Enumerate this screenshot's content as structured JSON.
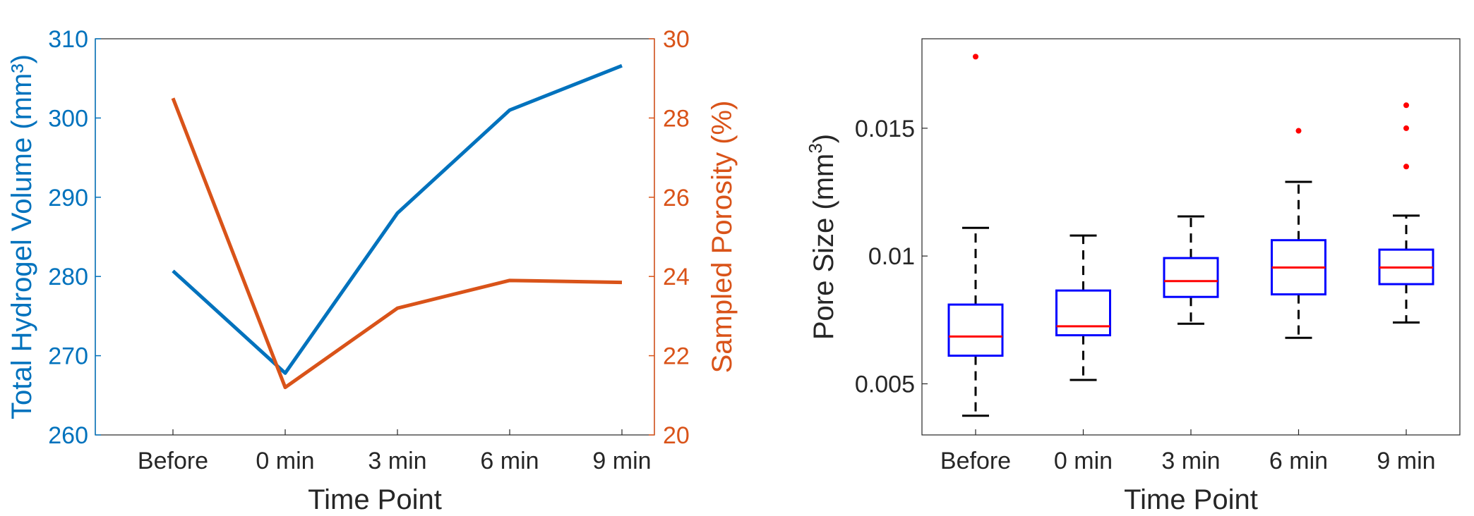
{
  "chart_data": [
    {
      "type": "line",
      "xlabel": "Time Point",
      "categories": [
        "Before",
        "0 min",
        "3 min",
        "6 min",
        "9 min"
      ],
      "series": [
        {
          "name": "Total Hydrogel Volume (mm³)",
          "axis": "left",
          "color": "#0072BD",
          "values": [
            280.7,
            267.8,
            288.0,
            301.0,
            306.6
          ]
        },
        {
          "name": "Sampled Porosity (%)",
          "axis": "right",
          "color": "#D95319",
          "values": [
            28.5,
            21.2,
            23.2,
            23.9,
            23.85
          ]
        }
      ],
      "y_left": {
        "label": "Total Hydrogel Volume (mm³)",
        "ylim": [
          260,
          310
        ],
        "ticks": [
          "260",
          "270",
          "280",
          "290",
          "300",
          "310"
        ]
      },
      "y_right": {
        "label": "Sampled Porosity (%)",
        "ylim": [
          20,
          30
        ],
        "ticks": [
          "20",
          "22",
          "24",
          "26",
          "28",
          "30"
        ]
      },
      "grid": false
    },
    {
      "type": "box",
      "xlabel": "Time Point",
      "ylabel_main": "Pore Size (mm",
      "ylabel_sup": "3",
      "ylabel_close": ")",
      "categories": [
        "Before",
        "0 min",
        "3 min",
        "6 min",
        "9 min"
      ],
      "ylim": [
        0.003,
        0.0185
      ],
      "yticks": [
        "0.005",
        "0.01",
        "0.015"
      ],
      "box_color": "#0000FF",
      "median_color": "#FF0000",
      "whisker_color": "#000000",
      "outlier_color": "#FF0000",
      "boxes": [
        {
          "whisker_low": 0.00375,
          "q1": 0.0061,
          "median": 0.00685,
          "q3": 0.0081,
          "whisker_high": 0.0111,
          "outliers": [
            0.0178
          ]
        },
        {
          "whisker_low": 0.00515,
          "q1": 0.0069,
          "median": 0.00725,
          "q3": 0.00865,
          "whisker_high": 0.0108,
          "outliers": []
        },
        {
          "whisker_low": 0.00735,
          "q1": 0.0084,
          "median": 0.00902,
          "q3": 0.00992,
          "whisker_high": 0.01155,
          "outliers": []
        },
        {
          "whisker_low": 0.0068,
          "q1": 0.0085,
          "median": 0.00955,
          "q3": 0.01062,
          "whisker_high": 0.0129,
          "outliers": [
            0.0149
          ]
        },
        {
          "whisker_low": 0.0074,
          "q1": 0.0089,
          "median": 0.00955,
          "q3": 0.01025,
          "whisker_high": 0.01158,
          "outliers": [
            0.0159,
            0.015,
            0.0135
          ]
        }
      ],
      "grid": false
    }
  ]
}
